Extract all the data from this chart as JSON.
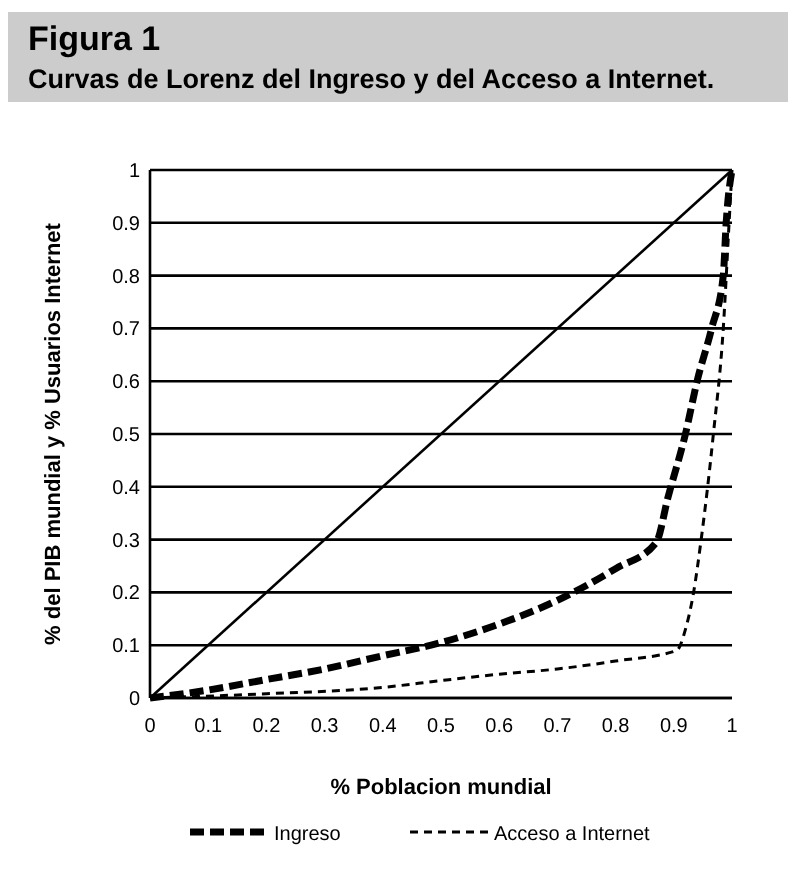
{
  "chart_data": {
    "type": "line",
    "title": "Figura 1",
    "subtitle": "Curvas de Lorenz del Ingreso y del Acceso a Internet.",
    "xlabel": "% Poblacion mundial",
    "ylabel": "% del PIB mundial y % Usuarios Internet",
    "xlim": [
      0,
      1
    ],
    "ylim": [
      0,
      1
    ],
    "xticks": [
      0,
      0.1,
      0.2,
      0.3,
      0.4,
      0.5,
      0.6,
      0.7,
      0.8,
      0.9,
      1
    ],
    "yticks": [
      0,
      0.1,
      0.2,
      0.3,
      0.4,
      0.5,
      0.6,
      0.7,
      0.8,
      0.9,
      1
    ],
    "grid": "y",
    "legend": "bottom",
    "marker": "none",
    "series": [
      {
        "color": "#000000",
        "line_style": "solid",
        "x": [
          0,
          1
        ],
        "values": [
          0,
          1
        ]
      },
      {
        "name": "Ingreso",
        "color": "#000000",
        "line_style": "dashed",
        "x": [
          0,
          0.1,
          0.2,
          0.3,
          0.4,
          0.5,
          0.6,
          0.7,
          0.8,
          0.87,
          0.89,
          0.92,
          0.94,
          0.965,
          0.985,
          0.99,
          1
        ],
        "values": [
          0,
          0.015,
          0.035,
          0.055,
          0.08,
          0.105,
          0.14,
          0.185,
          0.245,
          0.295,
          0.38,
          0.5,
          0.6,
          0.7,
          0.8,
          0.9,
          1
        ]
      },
      {
        "name": "Acceso a Internet",
        "color": "#000000",
        "line_style": "dashed",
        "x": [
          0,
          0.2,
          0.4,
          0.5,
          0.6,
          0.7,
          0.8,
          0.905,
          0.92,
          0.934,
          0.947,
          0.968,
          0.985,
          0.995,
          1
        ],
        "values": [
          0,
          0.008,
          0.02,
          0.033,
          0.045,
          0.055,
          0.07,
          0.09,
          0.13,
          0.2,
          0.3,
          0.5,
          0.7,
          0.9,
          1
        ]
      }
    ]
  }
}
